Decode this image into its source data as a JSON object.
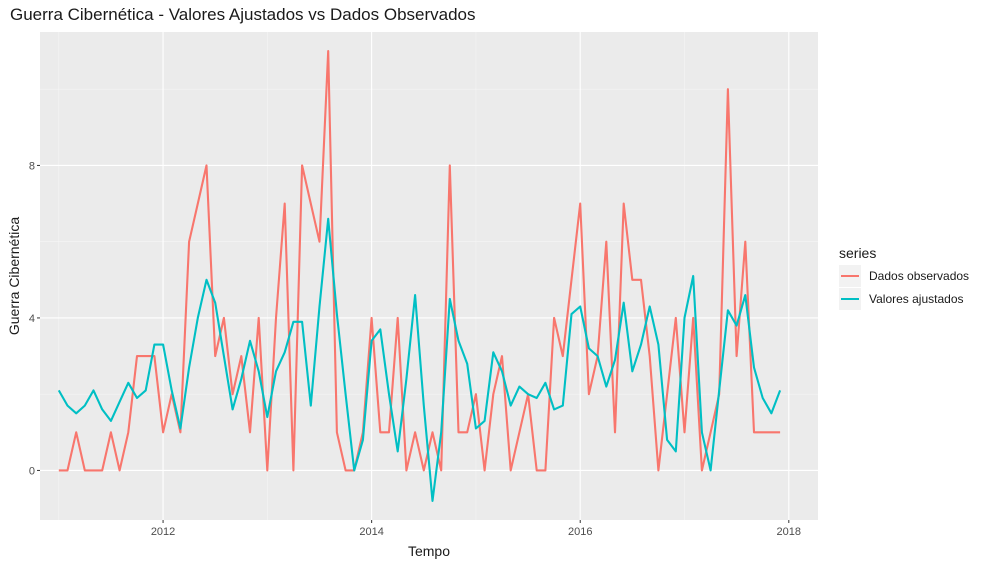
{
  "chart_data": {
    "type": "line",
    "title": "Guerra Cibernética - Valores Ajustados vs Dados Observados",
    "xlabel": "Tempo",
    "ylabel": "Guerra Cibernética",
    "x_range": [
      2010.82,
      2018.28
    ],
    "ylim": [
      -1.3,
      11.5
    ],
    "x_ticks": [
      2012,
      2014,
      2016,
      2018
    ],
    "x_tick_labels": [
      "2012",
      "2014",
      "2016",
      "2018"
    ],
    "y_ticks": [
      0,
      4,
      8
    ],
    "y_tick_labels": [
      "0",
      "4",
      "8"
    ],
    "x_start": 2011.0,
    "x_step": 0.08333,
    "legend": {
      "title": "series",
      "position": "right"
    },
    "series": [
      {
        "name": "Dados observados",
        "color": "#F8766D",
        "values": [
          0,
          0,
          1,
          0,
          0,
          0,
          1,
          0,
          1,
          3,
          3,
          3,
          1,
          2,
          1,
          6,
          7,
          8,
          3,
          4,
          2,
          3,
          1,
          4,
          0,
          4,
          7,
          0,
          8,
          7,
          6,
          11,
          1,
          0,
          0,
          1,
          4,
          1,
          1,
          4,
          0,
          1,
          0,
          1,
          0,
          8,
          1,
          1,
          2,
          0,
          2,
          3,
          0,
          1,
          2,
          0,
          0,
          4,
          3,
          5,
          7,
          2,
          3,
          6,
          1,
          7,
          5,
          5,
          3,
          0,
          2,
          4,
          1,
          4,
          0,
          1,
          2,
          10,
          3,
          6,
          1,
          1,
          1,
          1
        ]
      },
      {
        "name": "Valores ajustados",
        "color": "#00BFC4",
        "values": [
          2.1,
          1.7,
          1.5,
          1.7,
          2.1,
          1.6,
          1.3,
          1.8,
          2.3,
          1.9,
          2.1,
          3.3,
          3.3,
          2.1,
          1.1,
          2.7,
          4.0,
          5.0,
          4.4,
          3.0,
          1.6,
          2.4,
          3.4,
          2.6,
          1.4,
          2.6,
          3.1,
          3.9,
          3.9,
          1.7,
          4.3,
          6.6,
          4.1,
          2.0,
          0.0,
          0.8,
          3.4,
          3.7,
          2.0,
          0.5,
          2.4,
          4.6,
          1.7,
          -0.8,
          1.0,
          4.5,
          3.4,
          2.8,
          1.1,
          1.3,
          3.1,
          2.6,
          1.7,
          2.2,
          2.0,
          1.9,
          2.3,
          1.6,
          1.7,
          4.1,
          4.3,
          3.2,
          3.0,
          2.2,
          2.9,
          4.4,
          2.6,
          3.3,
          4.3,
          3.3,
          0.8,
          0.5,
          4.0,
          5.1,
          1.0,
          0.0,
          2.1,
          4.2,
          3.8,
          4.6,
          2.7,
          1.9,
          1.5,
          2.1
        ]
      }
    ]
  }
}
